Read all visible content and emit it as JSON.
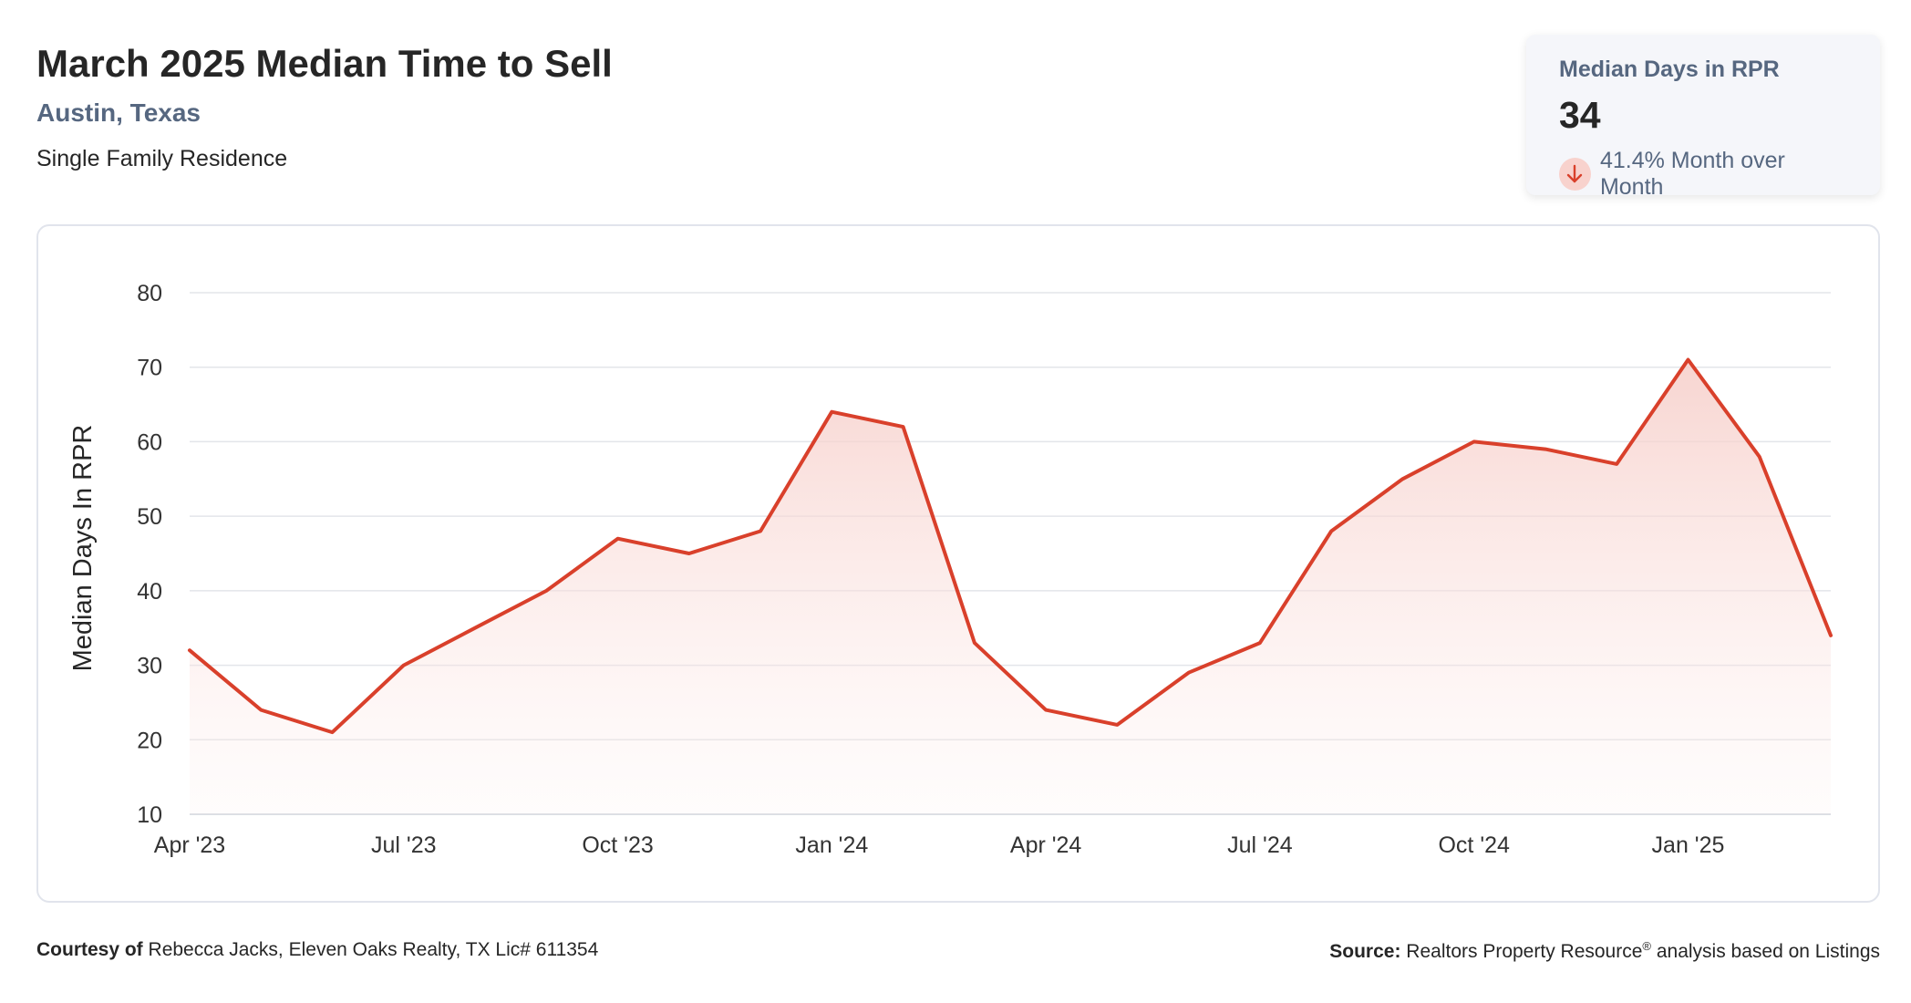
{
  "header": {
    "title": "March 2025 Median Time to Sell",
    "location": "Austin, Texas",
    "property_type": "Single Family Residence"
  },
  "stat_card": {
    "label": "Median Days in RPR",
    "value": "34",
    "change_text": "41.4% Month over Month",
    "change_direction_icon": "arrow-down-icon",
    "change_color": "#d9402b"
  },
  "colors": {
    "line": "#d9402b",
    "fill_top": "#f6cdc8",
    "grid": "#e3e5ea",
    "axis_text": "#333333"
  },
  "chart_data": {
    "type": "area",
    "ylabel": "Median Days In RPR",
    "xlabel": "",
    "ylim": [
      10,
      80
    ],
    "yticks": [
      10,
      20,
      30,
      40,
      50,
      60,
      70,
      80
    ],
    "grid": true,
    "x": [
      "2023-04",
      "2023-05",
      "2023-06",
      "2023-07",
      "2023-08",
      "2023-09",
      "2023-10",
      "2023-11",
      "2023-12",
      "2024-01",
      "2024-02",
      "2024-03",
      "2024-04",
      "2024-05",
      "2024-06",
      "2024-07",
      "2024-08",
      "2024-09",
      "2024-10",
      "2024-11",
      "2024-12",
      "2025-01",
      "2025-02",
      "2025-03"
    ],
    "xtick_labels": [
      "Apr '23",
      "Jul '23",
      "Oct '23",
      "Jan '24",
      "Apr '24",
      "Jul '24",
      "Oct '24",
      "Jan '25"
    ],
    "series": [
      {
        "values": [
          32,
          24,
          21,
          30,
          35,
          40,
          47,
          45,
          48,
          64,
          62,
          33,
          24,
          22,
          29,
          33,
          48,
          55,
          60,
          59,
          57,
          71,
          58,
          34
        ]
      }
    ]
  },
  "footer": {
    "courtesy_label": "Courtesy of",
    "courtesy_text": "Rebecca Jacks, Eleven Oaks Realty, TX Lic# 611354",
    "source_label": "Source:",
    "source_text": "Realtors Property Resource",
    "source_registered": "®",
    "source_suffix": "analysis based on Listings"
  }
}
